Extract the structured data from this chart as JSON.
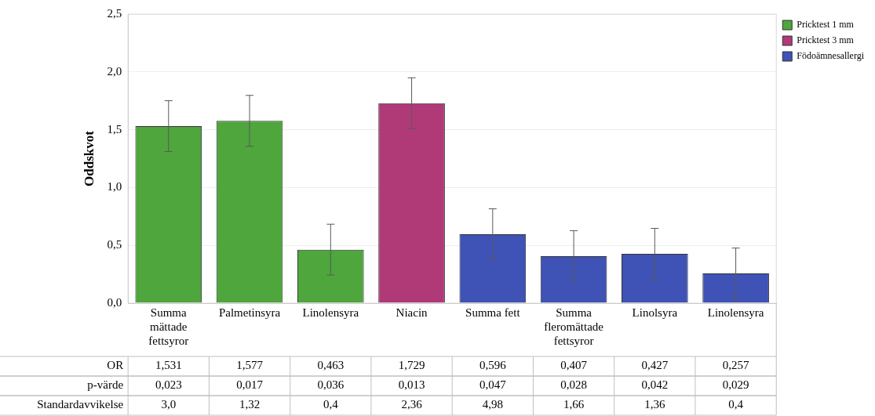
{
  "chart_data": {
    "type": "bar",
    "categories": [
      "Summa mättade fettsyror",
      "Palmetinsyra",
      "Linolensyra",
      "Niacin",
      "Summa fett",
      "Summa fleromättade fettsyror",
      "Linolsyra",
      "Linolensyra"
    ],
    "series": [
      {
        "name": "Pricktest 1 mm",
        "color": "#4ea63c",
        "values": [
          1.531,
          1.577,
          0.463,
          null,
          null,
          null,
          null,
          null
        ],
        "errors": [
          0.22,
          0.22,
          0.22,
          null,
          null,
          null,
          null,
          null
        ]
      },
      {
        "name": "Pricktest 3 mm",
        "color": "#b03a78",
        "values": [
          null,
          null,
          null,
          1.729,
          null,
          null,
          null,
          null
        ],
        "errors": [
          null,
          null,
          null,
          0.22,
          null,
          null,
          null,
          null
        ]
      },
      {
        "name": "Födoämnesallergi",
        "color": "#3f52b5",
        "values": [
          null,
          null,
          null,
          null,
          0.596,
          0.407,
          0.427,
          0.257
        ],
        "errors": [
          null,
          null,
          null,
          null,
          0.22,
          0.22,
          0.22,
          0.22
        ]
      }
    ],
    "ylabel": "Oddskvot",
    "ylim": [
      0,
      2.5
    ],
    "yticks": [
      {
        "value": 0,
        "label": "0,0"
      },
      {
        "value": 0.5,
        "label": "0,5"
      },
      {
        "value": 1,
        "label": "1,0"
      },
      {
        "value": 1.5,
        "label": "1,5"
      },
      {
        "value": 2,
        "label": "2,0"
      },
      {
        "value": 2.5,
        "label": "2,5"
      }
    ],
    "grid": "y",
    "legend": "right",
    "annotations": [
      "OR",
      "p-värde",
      "Standardavvikelse",
      "1,531",
      "1,577",
      "0,463",
      "1,729",
      "0,596",
      "0,407",
      "0,427",
      "0,257",
      "0,023",
      "0,017",
      "0,036",
      "0,013",
      "0,047",
      "0,028",
      "0,042",
      "0,029",
      "3,0",
      "1,32",
      "0,4",
      "2,36",
      "4,98",
      "1,66",
      "1,36",
      "0,4"
    ]
  }
}
